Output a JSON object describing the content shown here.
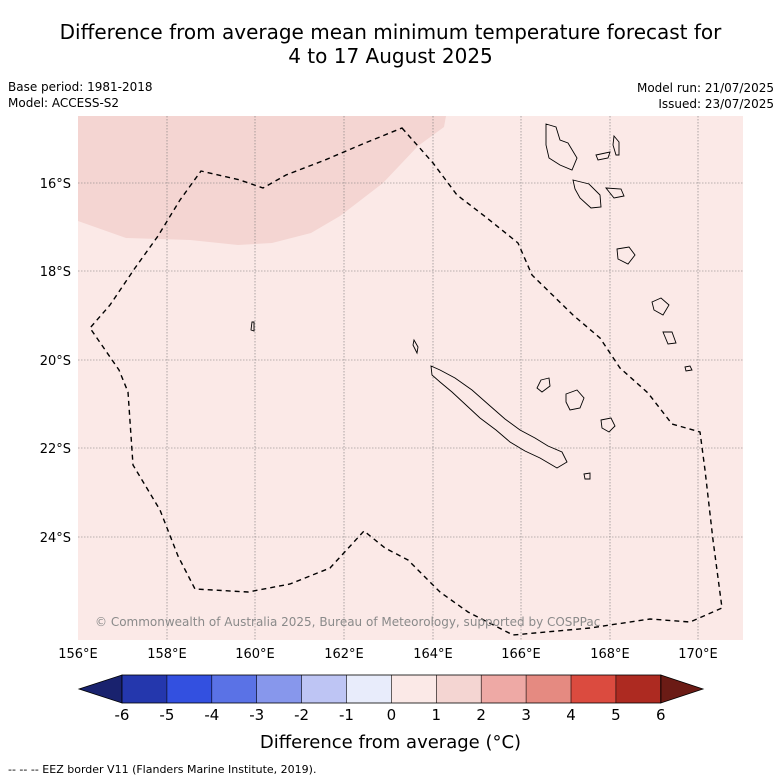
{
  "title_line1": "Difference from average mean minimum temperature forecast for",
  "title_line2": "4 to 17 August 2025",
  "meta": {
    "base_period": "Base period: 1981-2018",
    "model": "Model: ACCESS-S2",
    "model_run": "Model run: 21/07/2025",
    "issued": "Issued: 23/07/2025"
  },
  "map": {
    "lat_labels": [
      "16°S",
      "18°S",
      "20°S",
      "22°S",
      "24°S"
    ],
    "lon_labels": [
      "156°E",
      "158°E",
      "160°E",
      "162°E",
      "164°E",
      "166°E",
      "168°E",
      "170°E"
    ],
    "copyright": "© Commonwealth of Australia 2025, Bureau of Meteorology, supported by COSPPac",
    "background_color": "#fbe9e7",
    "anomaly_patch_color": "#f4d5d2"
  },
  "colorbar": {
    "tick_labels": [
      "-6",
      "-5",
      "-4",
      "-3",
      "-2",
      "-1",
      "0",
      "1",
      "2",
      "3",
      "4",
      "5",
      "6"
    ],
    "colors": [
      "#19226e",
      "#2437ad",
      "#3350e0",
      "#5a72e6",
      "#8797ec",
      "#bec5f4",
      "#e8ecfb",
      "#fbe9e7",
      "#f4d5d2",
      "#eea9a5",
      "#e58a81",
      "#db4b3f",
      "#ad2a21",
      "#6b1b15"
    ],
    "label": "Difference from average (°C)"
  },
  "footer": "--  --  -- EEZ border V11 (Flanders Marine Institute, 2019)."
}
